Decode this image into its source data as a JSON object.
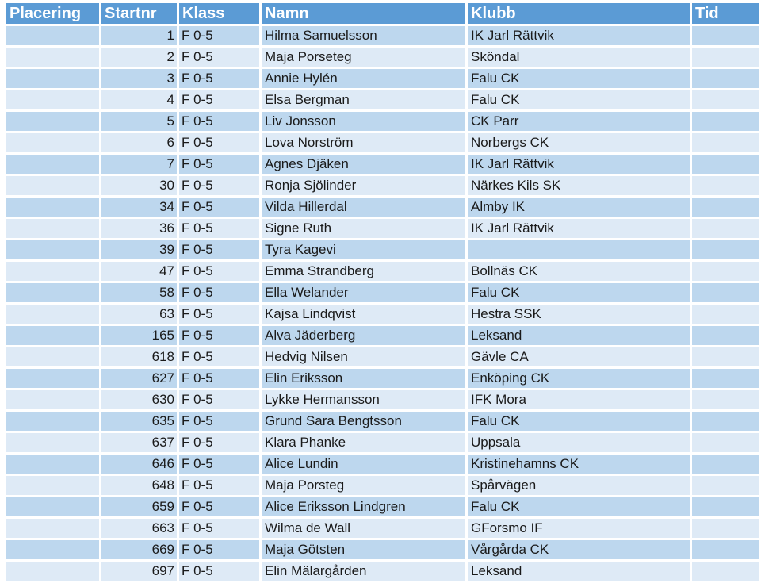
{
  "headers": {
    "placering": "Placering",
    "startnr": "Startnr",
    "klass": "Klass",
    "namn": "Namn",
    "klubb": "Klubb",
    "tid": "Tid"
  },
  "rows": [
    {
      "placering": "",
      "startnr": "1",
      "klass": "F 0-5",
      "namn": "Hilma Samuelsson",
      "klubb": "IK Jarl Rättvik",
      "tid": ""
    },
    {
      "placering": "",
      "startnr": "2",
      "klass": "F 0-5",
      "namn": "Maja Porseteg",
      "klubb": "Sköndal",
      "tid": ""
    },
    {
      "placering": "",
      "startnr": "3",
      "klass": "F 0-5",
      "namn": "Annie Hylén",
      "klubb": "Falu CK",
      "tid": ""
    },
    {
      "placering": "",
      "startnr": "4",
      "klass": "F 0-5",
      "namn": "Elsa Bergman",
      "klubb": "Falu CK",
      "tid": ""
    },
    {
      "placering": "",
      "startnr": "5",
      "klass": "F 0-5",
      "namn": "Liv Jonsson",
      "klubb": "CK Parr",
      "tid": ""
    },
    {
      "placering": "",
      "startnr": "6",
      "klass": "F 0-5",
      "namn": "Lova Norström",
      "klubb": "Norbergs CK",
      "tid": ""
    },
    {
      "placering": "",
      "startnr": "7",
      "klass": "F 0-5",
      "namn": "Agnes Djäken",
      "klubb": "IK Jarl Rättvik",
      "tid": ""
    },
    {
      "placering": "",
      "startnr": "30",
      "klass": "F 0-5",
      "namn": "Ronja Sjölinder",
      "klubb": "Närkes Kils SK",
      "tid": ""
    },
    {
      "placering": "",
      "startnr": "34",
      "klass": "F 0-5",
      "namn": "Vilda Hillerdal",
      "klubb": "Almby IK",
      "tid": ""
    },
    {
      "placering": "",
      "startnr": "36",
      "klass": "F 0-5",
      "namn": "Signe Ruth",
      "klubb": "IK Jarl Rättvik",
      "tid": ""
    },
    {
      "placering": "",
      "startnr": "39",
      "klass": "F 0-5",
      "namn": "Tyra Kagevi",
      "klubb": "",
      "tid": ""
    },
    {
      "placering": "",
      "startnr": "47",
      "klass": "F 0-5",
      "namn": "Emma Strandberg",
      "klubb": "Bollnäs CK",
      "tid": ""
    },
    {
      "placering": "",
      "startnr": "58",
      "klass": "F 0-5",
      "namn": "Ella Welander",
      "klubb": "Falu CK",
      "tid": ""
    },
    {
      "placering": "",
      "startnr": "63",
      "klass": "F 0-5",
      "namn": "Kajsa Lindqvist",
      "klubb": "Hestra SSK",
      "tid": ""
    },
    {
      "placering": "",
      "startnr": "165",
      "klass": "F 0-5",
      "namn": "Alva Jäderberg",
      "klubb": "Leksand",
      "tid": ""
    },
    {
      "placering": "",
      "startnr": "618",
      "klass": "F 0-5",
      "namn": "Hedvig Nilsen",
      "klubb": "Gävle CA",
      "tid": ""
    },
    {
      "placering": "",
      "startnr": "627",
      "klass": "F 0-5",
      "namn": "Elin Eriksson",
      "klubb": "Enköping CK",
      "tid": ""
    },
    {
      "placering": "",
      "startnr": "630",
      "klass": "F 0-5",
      "namn": "Lykke Hermansson",
      "klubb": "IFK Mora",
      "tid": ""
    },
    {
      "placering": "",
      "startnr": "635",
      "klass": "F 0-5",
      "namn": "Grund Sara Bengtsson",
      "klubb": "Falu CK",
      "tid": ""
    },
    {
      "placering": "",
      "startnr": "637",
      "klass": "F 0-5",
      "namn": "Klara Phanke",
      "klubb": "Uppsala",
      "tid": ""
    },
    {
      "placering": "",
      "startnr": "646",
      "klass": "F 0-5",
      "namn": "Alice Lundin",
      "klubb": "Kristinehamns CK",
      "tid": ""
    },
    {
      "placering": "",
      "startnr": "648",
      "klass": "F 0-5",
      "namn": "Maja Porsteg",
      "klubb": "Spårvägen",
      "tid": ""
    },
    {
      "placering": "",
      "startnr": "659",
      "klass": "F 0-5",
      "namn": "Alice Eriksson Lindgren",
      "klubb": "Falu CK",
      "tid": ""
    },
    {
      "placering": "",
      "startnr": "663",
      "klass": "F 0-5",
      "namn": "Wilma de Wall",
      "klubb": "GForsmo IF",
      "tid": ""
    },
    {
      "placering": "",
      "startnr": "669",
      "klass": "F 0-5",
      "namn": "Maja Götsten",
      "klubb": "Vårgårda CK",
      "tid": ""
    },
    {
      "placering": "",
      "startnr": "697",
      "klass": "F 0-5",
      "namn": "Elin Mälargården",
      "klubb": "Leksand",
      "tid": ""
    }
  ],
  "colors": {
    "header_bg": "#5b9bd5",
    "header_text": "#ffffff",
    "row_dark": "#bdd7ee",
    "row_light": "#deeaf6"
  }
}
